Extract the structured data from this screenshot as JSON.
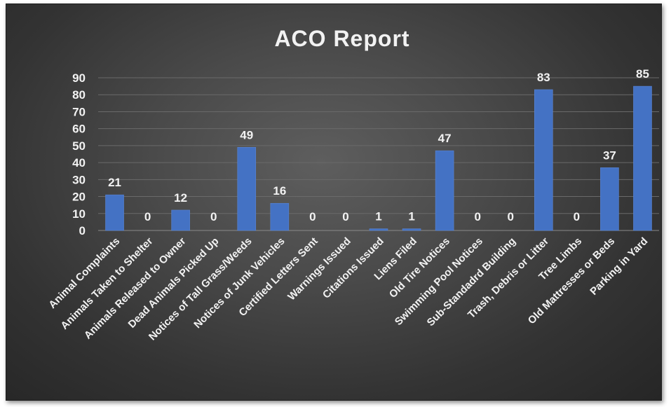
{
  "chart_data": {
    "type": "bar",
    "title": "ACO Report",
    "xlabel": "",
    "ylabel": "",
    "ylim": [
      0,
      90
    ],
    "yticks": [
      0,
      10,
      20,
      30,
      40,
      50,
      60,
      70,
      80,
      90
    ],
    "grid": true,
    "legend": "none",
    "bar_color": "#4472c4",
    "categories": [
      "Animal Complaints",
      "Animals Taken to Shelter",
      "Animals Released to Owner",
      "Dead Animals Picked Up",
      "Notices of Tall Grass/Weeds",
      "Notices of Junk Vehicles",
      "Certified Letters Sent",
      "Warnings Issued",
      "Citations Issued",
      "Liens Filed",
      "Old Tire Notices",
      "Swimming Pool Notices",
      "Sub-Standadrd Building",
      "Trash, Debris or Litter",
      "Tree Limbs",
      "Old Mattresses or Beds",
      "Parking in Yard"
    ],
    "values": [
      21,
      0,
      12,
      0,
      49,
      16,
      0,
      0,
      1,
      1,
      47,
      0,
      0,
      83,
      0,
      37,
      85
    ]
  }
}
